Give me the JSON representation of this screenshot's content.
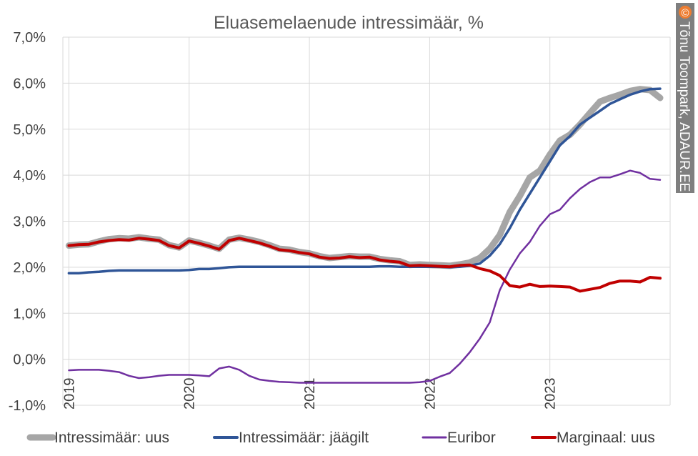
{
  "chart_data": {
    "type": "line",
    "title": "Eluasemelaenude intressimäär, %",
    "xlabel": "",
    "ylabel": "",
    "ylim": [
      -1,
      7
    ],
    "y_ticks": [
      "-1,0%",
      "0,0%",
      "1,0%",
      "2,0%",
      "3,0%",
      "4,0%",
      "5,0%",
      "6,0%",
      "7,0%"
    ],
    "x_ticks": [
      "2019",
      "2020",
      "2021",
      "2022",
      "2023"
    ],
    "x_tick_values": [
      2019.0,
      2020.0,
      2021.0,
      2022.0,
      2023.0
    ],
    "xlim": [
      2018.95,
      2024.0
    ],
    "grid": true,
    "legend_position": "bottom",
    "series": [
      {
        "name": "Intressimäär: uus",
        "color": "#a6a6a6",
        "x": [
          2019.0,
          2019.083,
          2019.167,
          2019.25,
          2019.333,
          2019.417,
          2019.5,
          2019.583,
          2019.667,
          2019.75,
          2019.833,
          2019.917,
          2020.0,
          2020.083,
          2020.167,
          2020.25,
          2020.333,
          2020.417,
          2020.5,
          2020.583,
          2020.667,
          2020.75,
          2020.833,
          2020.917,
          2021.0,
          2021.083,
          2021.167,
          2021.25,
          2021.333,
          2021.417,
          2021.5,
          2021.583,
          2021.667,
          2021.75,
          2021.833,
          2021.917,
          2022.0,
          2022.083,
          2022.167,
          2022.25,
          2022.333,
          2022.417,
          2022.5,
          2022.583,
          2022.667,
          2022.75,
          2022.833,
          2022.917,
          2023.0,
          2023.083,
          2023.167,
          2023.25,
          2023.333,
          2023.417,
          2023.5,
          2023.583,
          2023.667,
          2023.75,
          2023.833,
          2023.917
        ],
        "values": [
          2.47,
          2.49,
          2.5,
          2.56,
          2.61,
          2.63,
          2.62,
          2.65,
          2.62,
          2.6,
          2.48,
          2.43,
          2.58,
          2.53,
          2.47,
          2.4,
          2.6,
          2.64,
          2.6,
          2.55,
          2.48,
          2.4,
          2.38,
          2.33,
          2.3,
          2.24,
          2.2,
          2.22,
          2.24,
          2.23,
          2.23,
          2.18,
          2.15,
          2.13,
          2.05,
          2.06,
          2.05,
          2.04,
          2.03,
          2.06,
          2.1,
          2.2,
          2.4,
          2.7,
          3.2,
          3.55,
          3.95,
          4.1,
          4.45,
          4.75,
          4.88,
          5.1,
          5.35,
          5.6,
          5.68,
          5.75,
          5.83,
          5.87,
          5.85,
          5.68
        ]
      },
      {
        "name": "Intressimäär: jäägilt",
        "color": "#2f5597",
        "x": [
          2019.0,
          2019.083,
          2019.167,
          2019.25,
          2019.333,
          2019.417,
          2019.5,
          2019.583,
          2019.667,
          2019.75,
          2019.833,
          2019.917,
          2020.0,
          2020.083,
          2020.167,
          2020.25,
          2020.333,
          2020.417,
          2020.5,
          2020.583,
          2020.667,
          2020.75,
          2020.833,
          2020.917,
          2021.0,
          2021.083,
          2021.167,
          2021.25,
          2021.333,
          2021.417,
          2021.5,
          2021.583,
          2021.667,
          2021.75,
          2021.833,
          2021.917,
          2022.0,
          2022.083,
          2022.167,
          2022.25,
          2022.333,
          2022.417,
          2022.5,
          2022.583,
          2022.667,
          2022.75,
          2022.833,
          2022.917,
          2023.0,
          2023.083,
          2023.167,
          2023.25,
          2023.333,
          2023.417,
          2023.5,
          2023.583,
          2023.667,
          2023.75,
          2023.833,
          2023.917
        ],
        "values": [
          1.87,
          1.87,
          1.89,
          1.9,
          1.92,
          1.93,
          1.93,
          1.93,
          1.93,
          1.93,
          1.93,
          1.93,
          1.94,
          1.96,
          1.96,
          1.98,
          2.0,
          2.01,
          2.01,
          2.01,
          2.01,
          2.01,
          2.01,
          2.01,
          2.01,
          2.01,
          2.01,
          2.01,
          2.01,
          2.01,
          2.01,
          2.02,
          2.02,
          2.01,
          2.01,
          2.01,
          2.01,
          2.01,
          2.0,
          2.01,
          2.03,
          2.08,
          2.25,
          2.5,
          2.85,
          3.25,
          3.6,
          3.95,
          4.3,
          4.65,
          4.85,
          5.1,
          5.25,
          5.4,
          5.55,
          5.65,
          5.75,
          5.82,
          5.87,
          5.88
        ]
      },
      {
        "name": "Euribor",
        "color": "#7030a0",
        "x": [
          2019.0,
          2019.083,
          2019.167,
          2019.25,
          2019.333,
          2019.417,
          2019.5,
          2019.583,
          2019.667,
          2019.75,
          2019.833,
          2019.917,
          2020.0,
          2020.083,
          2020.167,
          2020.25,
          2020.333,
          2020.417,
          2020.5,
          2020.583,
          2020.667,
          2020.75,
          2020.833,
          2020.917,
          2021.0,
          2021.083,
          2021.167,
          2021.25,
          2021.333,
          2021.417,
          2021.5,
          2021.583,
          2021.667,
          2021.75,
          2021.833,
          2021.917,
          2022.0,
          2022.083,
          2022.167,
          2022.25,
          2022.333,
          2022.417,
          2022.5,
          2022.583,
          2022.667,
          2022.75,
          2022.833,
          2022.917,
          2023.0,
          2023.083,
          2023.167,
          2023.25,
          2023.333,
          2023.417,
          2023.5,
          2023.583,
          2023.667,
          2023.75,
          2023.833,
          2023.917
        ],
        "values": [
          -0.24,
          -0.23,
          -0.23,
          -0.23,
          -0.25,
          -0.28,
          -0.36,
          -0.41,
          -0.39,
          -0.36,
          -0.34,
          -0.34,
          -0.34,
          -0.35,
          -0.37,
          -0.2,
          -0.16,
          -0.23,
          -0.36,
          -0.44,
          -0.47,
          -0.49,
          -0.5,
          -0.51,
          -0.51,
          -0.51,
          -0.51,
          -0.51,
          -0.51,
          -0.51,
          -0.51,
          -0.51,
          -0.51,
          -0.51,
          -0.51,
          -0.5,
          -0.47,
          -0.38,
          -0.3,
          -0.1,
          0.15,
          0.45,
          0.8,
          1.5,
          1.95,
          2.3,
          2.55,
          2.9,
          3.15,
          3.25,
          3.5,
          3.7,
          3.85,
          3.95,
          3.95,
          4.02,
          4.1,
          4.05,
          3.92,
          3.9
        ]
      },
      {
        "name": "Marginaal: uus",
        "color": "#c00000",
        "x": [
          2019.0,
          2019.083,
          2019.167,
          2019.25,
          2019.333,
          2019.417,
          2019.5,
          2019.583,
          2019.667,
          2019.75,
          2019.833,
          2019.917,
          2020.0,
          2020.083,
          2020.167,
          2020.25,
          2020.333,
          2020.417,
          2020.5,
          2020.583,
          2020.667,
          2020.75,
          2020.833,
          2020.917,
          2021.0,
          2021.083,
          2021.167,
          2021.25,
          2021.333,
          2021.417,
          2021.5,
          2021.583,
          2021.667,
          2021.75,
          2021.833,
          2021.917,
          2022.0,
          2022.083,
          2022.167,
          2022.25,
          2022.333,
          2022.417,
          2022.5,
          2022.583,
          2022.667,
          2022.75,
          2022.833,
          2022.917,
          2023.0,
          2023.083,
          2023.167,
          2023.25,
          2023.333,
          2023.417,
          2023.5,
          2023.583,
          2023.667,
          2023.75,
          2023.833,
          2023.917
        ],
        "values": [
          2.47,
          2.49,
          2.5,
          2.55,
          2.58,
          2.6,
          2.59,
          2.63,
          2.61,
          2.58,
          2.47,
          2.42,
          2.57,
          2.52,
          2.46,
          2.39,
          2.58,
          2.63,
          2.58,
          2.53,
          2.46,
          2.38,
          2.36,
          2.32,
          2.29,
          2.22,
          2.19,
          2.2,
          2.23,
          2.21,
          2.22,
          2.16,
          2.13,
          2.11,
          2.03,
          2.04,
          2.03,
          2.02,
          2.01,
          2.04,
          2.05,
          1.97,
          1.92,
          1.82,
          1.6,
          1.57,
          1.63,
          1.58,
          1.59,
          1.58,
          1.57,
          1.48,
          1.52,
          1.56,
          1.65,
          1.7,
          1.7,
          1.68,
          1.78,
          1.76
        ]
      }
    ],
    "legend": [
      {
        "name": "Intressimäär: uus",
        "color": "#a6a6a6"
      },
      {
        "name": "Intressimäär: jäägilt",
        "color": "#2f5597"
      },
      {
        "name": "Euribor",
        "color": "#7030a0"
      },
      {
        "name": "Marginaal: uus",
        "color": "#c00000"
      }
    ]
  },
  "watermark": {
    "symbol": "©",
    "text": "Tõnu Toompark, ADAUR.EE"
  }
}
